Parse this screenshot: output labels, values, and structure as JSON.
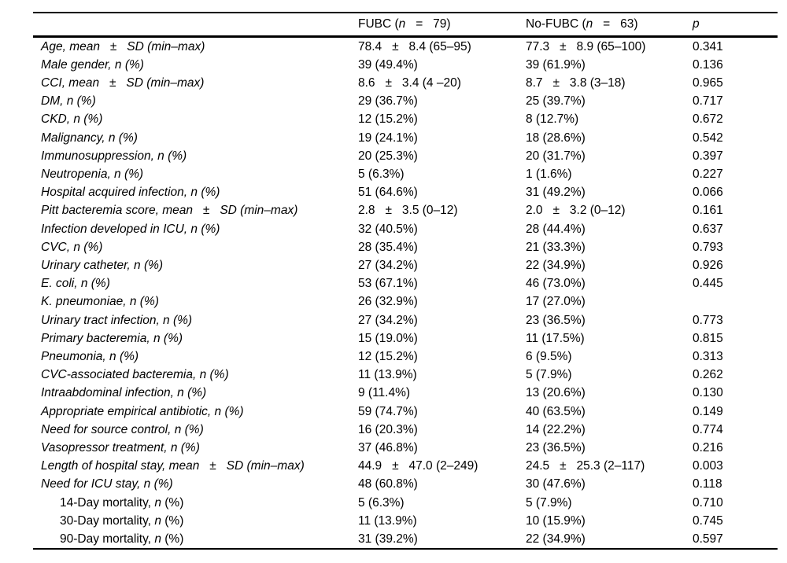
{
  "table": {
    "header": [
      {
        "segments": []
      },
      {
        "segments": [
          {
            "t": "FUBC ("
          },
          {
            "t": "n",
            "i": true
          },
          {
            "t": "   =   79)"
          }
        ]
      },
      {
        "segments": [
          {
            "t": "No-FUBC ("
          },
          {
            "t": "n",
            "i": true
          },
          {
            "t": "   =   63)"
          }
        ]
      },
      {
        "segments": [
          {
            "t": "p",
            "i": true
          }
        ]
      }
    ],
    "rows": [
      {
        "indent": false,
        "label_segments": [
          {
            "t": "Age, mean   ±   SD (min–max)",
            "i": true
          }
        ],
        "fubc": "78.4   ±   8.4 (65–95)",
        "nofubc": "77.3   ±   8.9 (65–100)",
        "p": "0.341"
      },
      {
        "indent": false,
        "label_segments": [
          {
            "t": "Male gender, n (%)",
            "i": true
          }
        ],
        "fubc": "39 (49.4%)",
        "nofubc": "39 (61.9%)",
        "p": "0.136"
      },
      {
        "indent": false,
        "label_segments": [
          {
            "t": "CCI, mean   ±   SD (min–max)",
            "i": true
          }
        ],
        "fubc": "8.6   ±   3.4 (4 –20)",
        "nofubc": "8.7   ±   3.8 (3–18)",
        "p": "0.965"
      },
      {
        "indent": false,
        "label_segments": [
          {
            "t": "DM, n (%)",
            "i": true
          }
        ],
        "fubc": "29 (36.7%)",
        "nofubc": "25 (39.7%)",
        "p": "0.717"
      },
      {
        "indent": false,
        "label_segments": [
          {
            "t": "CKD, n (%)",
            "i": true
          }
        ],
        "fubc": "12 (15.2%)",
        "nofubc": "8 (12.7%)",
        "p": "0.672"
      },
      {
        "indent": false,
        "label_segments": [
          {
            "t": "Malignancy, n (%)",
            "i": true
          }
        ],
        "fubc": "19 (24.1%)",
        "nofubc": "18 (28.6%)",
        "p": "0.542"
      },
      {
        "indent": false,
        "label_segments": [
          {
            "t": "Immunosuppression, n (%)",
            "i": true
          }
        ],
        "fubc": "20 (25.3%)",
        "nofubc": "20 (31.7%)",
        "p": "0.397"
      },
      {
        "indent": false,
        "label_segments": [
          {
            "t": "Neutropenia, n (%)",
            "i": true
          }
        ],
        "fubc": "5 (6.3%)",
        "nofubc": "1 (1.6%)",
        "p": "0.227"
      },
      {
        "indent": false,
        "label_segments": [
          {
            "t": "Hospital acquired infection, n (%)",
            "i": true
          }
        ],
        "fubc": "51 (64.6%)",
        "nofubc": "31 (49.2%)",
        "p": "0.066"
      },
      {
        "indent": false,
        "label_segments": [
          {
            "t": "Pitt bacteremia score, mean   ±   SD (min–max)",
            "i": true
          }
        ],
        "fubc": "2.8   ±   3.5 (0–12)",
        "nofubc": "2.0   ±   3.2 (0–12)",
        "p": "0.161"
      },
      {
        "indent": false,
        "label_segments": [
          {
            "t": "Infection developed in ICU, n (%)",
            "i": true
          }
        ],
        "fubc": "32 (40.5%)",
        "nofubc": "28 (44.4%)",
        "p": "0.637"
      },
      {
        "indent": false,
        "label_segments": [
          {
            "t": "CVC, n (%)",
            "i": true
          }
        ],
        "fubc": "28 (35.4%)",
        "nofubc": "21 (33.3%)",
        "p": "0.793"
      },
      {
        "indent": false,
        "label_segments": [
          {
            "t": "Urinary catheter, n (%)",
            "i": true
          }
        ],
        "fubc": "27 (34.2%)",
        "nofubc": "22 (34.9%)",
        "p": "0.926"
      },
      {
        "indent": false,
        "label_segments": [
          {
            "t": "E. coli, n (%)",
            "i": true
          }
        ],
        "fubc": "53 (67.1%)",
        "nofubc": "46 (73.0%)",
        "p": "0.445"
      },
      {
        "indent": false,
        "label_segments": [
          {
            "t": "K. pneumoniae, n (%)",
            "i": true
          }
        ],
        "fubc": "26 (32.9%)",
        "nofubc": "17 (27.0%)",
        "p": ""
      },
      {
        "indent": false,
        "label_segments": [
          {
            "t": "Urinary tract infection, n (%)",
            "i": true
          }
        ],
        "fubc": "27 (34.2%)",
        "nofubc": "23 (36.5%)",
        "p": "0.773"
      },
      {
        "indent": false,
        "label_segments": [
          {
            "t": "Primary bacteremia, n (%)",
            "i": true
          }
        ],
        "fubc": "15 (19.0%)",
        "nofubc": "11 (17.5%)",
        "p": "0.815"
      },
      {
        "indent": false,
        "label_segments": [
          {
            "t": "Pneumonia, n (%)",
            "i": true
          }
        ],
        "fubc": "12 (15.2%)",
        "nofubc": "6 (9.5%)",
        "p": "0.313"
      },
      {
        "indent": false,
        "label_segments": [
          {
            "t": "CVC-associated bacteremia, n (%)",
            "i": true
          }
        ],
        "fubc": "11 (13.9%)",
        "nofubc": "5 (7.9%)",
        "p": "0.262"
      },
      {
        "indent": false,
        "label_segments": [
          {
            "t": "Intraabdominal infection, n (%)",
            "i": true
          }
        ],
        "fubc": "9 (11.4%)",
        "nofubc": "13 (20.6%)",
        "p": "0.130"
      },
      {
        "indent": false,
        "label_segments": [
          {
            "t": "Appropriate empirical antibiotic, n (%)",
            "i": true
          }
        ],
        "fubc": "59 (74.7%)",
        "nofubc": "40 (63.5%)",
        "p": "0.149"
      },
      {
        "indent": false,
        "label_segments": [
          {
            "t": "Need for source control, n (%)",
            "i": true
          }
        ],
        "fubc": "16 (20.3%)",
        "nofubc": "14 (22.2%)",
        "p": "0.774"
      },
      {
        "indent": false,
        "label_segments": [
          {
            "t": "Vasopressor treatment, n (%)",
            "i": true
          }
        ],
        "fubc": "37 (46.8%)",
        "nofubc": "23 (36.5%)",
        "p": "0.216"
      },
      {
        "indent": false,
        "label_segments": [
          {
            "t": "Length of hospital stay, mean   ±   SD (min–max)",
            "i": true
          }
        ],
        "fubc": "44.9   ±   47.0 (2–249)",
        "nofubc": "24.5   ±   25.3 (2–117)",
        "p": "0.003"
      },
      {
        "indent": false,
        "label_segments": [
          {
            "t": "Need for ICU stay, n (%)",
            "i": true
          }
        ],
        "fubc": "48 (60.8%)",
        "nofubc": "30 (47.6%)",
        "p": "0.118"
      },
      {
        "indent": true,
        "label_segments": [
          {
            "t": "14-Day mortality, "
          },
          {
            "t": "n",
            "i": true
          },
          {
            "t": " (%)"
          }
        ],
        "fubc": "5 (6.3%)",
        "nofubc": "5 (7.9%)",
        "p": "0.710"
      },
      {
        "indent": true,
        "label_segments": [
          {
            "t": "30-Day mortality, "
          },
          {
            "t": "n",
            "i": true
          },
          {
            "t": " (%)"
          }
        ],
        "fubc": "11 (13.9%)",
        "nofubc": "10 (15.9%)",
        "p": "0.745"
      },
      {
        "indent": true,
        "label_segments": [
          {
            "t": "90-Day mortality, "
          },
          {
            "t": "n",
            "i": true
          },
          {
            "t": " (%)"
          }
        ],
        "fubc": "31 (39.2%)",
        "nofubc": "22 (34.9%)",
        "p": "0.597"
      }
    ]
  }
}
